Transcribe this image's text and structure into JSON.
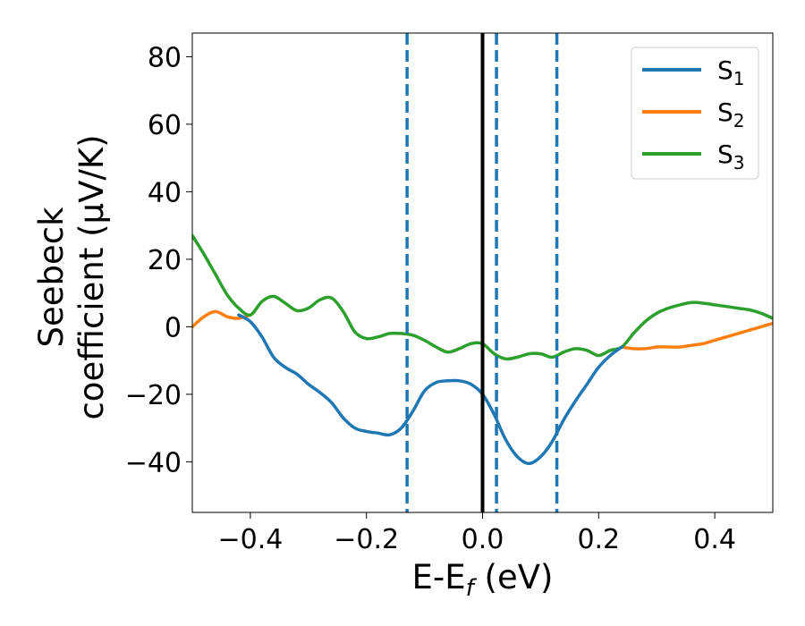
{
  "chart_data": {
    "type": "line",
    "xlabel": "E-E_f (eV)",
    "ylabel_lines": [
      "Seebeck",
      "coefficient  (μV/K)"
    ],
    "xlim": [
      -0.5,
      0.5
    ],
    "ylim": [
      -55,
      87
    ],
    "xticks": [
      -0.4,
      -0.2,
      0.0,
      0.2,
      0.4
    ],
    "xtick_labels": [
      "−0.4",
      "−0.2",
      "0.0",
      "0.2",
      "0.4"
    ],
    "yticks": [
      -40,
      -20,
      0,
      20,
      40,
      60,
      80
    ],
    "ytick_labels": [
      "−40",
      "−20",
      "0",
      "20",
      "40",
      "60",
      "80"
    ],
    "grid": false,
    "legend_position": "top-right",
    "fermi_line": {
      "x": 0.0,
      "color": "#000000"
    },
    "vlines_dashed": {
      "x": [
        -0.13,
        0.024,
        0.128
      ],
      "color": "#1f77b4"
    },
    "series": [
      {
        "name": "S",
        "subscript": "1",
        "color": "#1f77b4",
        "x": [
          -0.42,
          -0.4,
          -0.38,
          -0.36,
          -0.34,
          -0.32,
          -0.3,
          -0.28,
          -0.26,
          -0.24,
          -0.22,
          -0.2,
          -0.18,
          -0.16,
          -0.14,
          -0.12,
          -0.1,
          -0.08,
          -0.06,
          -0.04,
          -0.02,
          0.0,
          0.02,
          0.04,
          0.06,
          0.08,
          0.1,
          0.12,
          0.14,
          0.16,
          0.18,
          0.2,
          0.22,
          0.24
        ],
        "y": [
          3.5,
          1.5,
          -3.0,
          -9.0,
          -12.0,
          -14.0,
          -17.0,
          -19.5,
          -22.5,
          -27.0,
          -30.0,
          -31.0,
          -31.5,
          -32.0,
          -30.0,
          -25.0,
          -19.0,
          -16.5,
          -16.0,
          -16.0,
          -17.0,
          -20.0,
          -26.0,
          -33.5,
          -38.5,
          -40.5,
          -38.5,
          -34.0,
          -27.5,
          -22.0,
          -17.0,
          -12.0,
          -8.5,
          -6.0
        ]
      },
      {
        "name": "S",
        "subscript": "2",
        "color": "#ff7f0e",
        "x": [
          -0.5,
          -0.48,
          -0.46,
          -0.44,
          -0.42,
          -0.4,
          0.24,
          0.26,
          0.28,
          0.3,
          0.32,
          0.34,
          0.36,
          0.38,
          0.4,
          0.42,
          0.44,
          0.46,
          0.48,
          0.5
        ],
        "y": [
          0.0,
          3.0,
          4.5,
          3.0,
          2.5,
          3.5,
          -6.0,
          -6.5,
          -6.5,
          -6.0,
          -6.0,
          -6.0,
          -5.5,
          -5.0,
          -4.0,
          -3.0,
          -2.0,
          -1.0,
          0.0,
          1.0
        ]
      },
      {
        "name": "S",
        "subscript": "3",
        "color": "#2ca02c",
        "x": [
          -0.5,
          -0.48,
          -0.46,
          -0.44,
          -0.42,
          -0.4,
          -0.38,
          -0.36,
          -0.34,
          -0.32,
          -0.3,
          -0.28,
          -0.26,
          -0.24,
          -0.22,
          -0.2,
          -0.18,
          -0.16,
          -0.14,
          -0.12,
          -0.1,
          -0.08,
          -0.06,
          -0.04,
          -0.02,
          0.0,
          0.02,
          0.04,
          0.06,
          0.08,
          0.1,
          0.12,
          0.14,
          0.16,
          0.18,
          0.2,
          0.22,
          0.24,
          0.26,
          0.28,
          0.3,
          0.32,
          0.34,
          0.36,
          0.38,
          0.4,
          0.42,
          0.44,
          0.46,
          0.48,
          0.5
        ],
        "y": [
          27.0,
          21.5,
          15.5,
          9.5,
          5.5,
          3.5,
          7.5,
          9.0,
          7.0,
          4.8,
          5.5,
          8.0,
          8.5,
          4.5,
          -1.5,
          -3.5,
          -3.0,
          -2.0,
          -2.0,
          -2.5,
          -4.0,
          -6.0,
          -7.5,
          -6.5,
          -5.0,
          -5.0,
          -8.0,
          -9.5,
          -9.0,
          -8.0,
          -8.0,
          -9.0,
          -7.5,
          -6.5,
          -7.0,
          -8.5,
          -7.0,
          -6.0,
          -2.0,
          1.5,
          4.0,
          5.5,
          6.5,
          7.2,
          7.0,
          6.5,
          6.0,
          5.5,
          5.0,
          4.0,
          2.5
        ]
      }
    ]
  }
}
